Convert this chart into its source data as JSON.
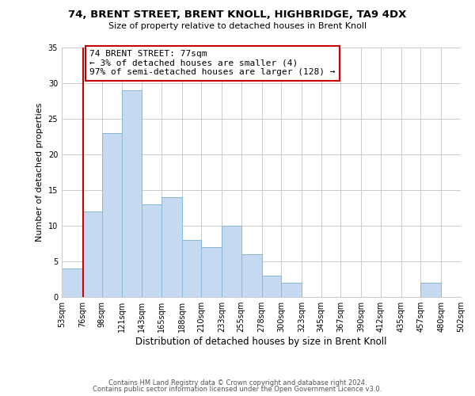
{
  "title": "74, BRENT STREET, BRENT KNOLL, HIGHBRIDGE, TA9 4DX",
  "subtitle": "Size of property relative to detached houses in Brent Knoll",
  "xlabel": "Distribution of detached houses by size in Brent Knoll",
  "ylabel": "Number of detached properties",
  "bin_edges": [
    53,
    76,
    98,
    121,
    143,
    165,
    188,
    210,
    233,
    255,
    278,
    300,
    323,
    345,
    367,
    390,
    412,
    435,
    457,
    480,
    502
  ],
  "bin_labels": [
    "53sqm",
    "76sqm",
    "98sqm",
    "121sqm",
    "143sqm",
    "165sqm",
    "188sqm",
    "210sqm",
    "233sqm",
    "255sqm",
    "278sqm",
    "300sqm",
    "323sqm",
    "345sqm",
    "367sqm",
    "390sqm",
    "412sqm",
    "435sqm",
    "457sqm",
    "480sqm",
    "502sqm"
  ],
  "counts": [
    4,
    12,
    23,
    29,
    13,
    14,
    8,
    7,
    10,
    6,
    3,
    2,
    0,
    0,
    0,
    0,
    0,
    0,
    2,
    0
  ],
  "bar_color": "#c5d9f1",
  "bar_edge_color": "#89b8d8",
  "vline_x": 77,
  "vline_color": "#cc0000",
  "annotation_text": "74 BRENT STREET: 77sqm\n← 3% of detached houses are smaller (4)\n97% of semi-detached houses are larger (128) →",
  "annotation_box_color": "#ffffff",
  "annotation_box_edge": "#cc0000",
  "ylim": [
    0,
    35
  ],
  "yticks": [
    0,
    5,
    10,
    15,
    20,
    25,
    30,
    35
  ],
  "footer_line1": "Contains HM Land Registry data © Crown copyright and database right 2024.",
  "footer_line2": "Contains public sector information licensed under the Open Government Licence v3.0.",
  "bg_color": "#ffffff",
  "grid_color": "#cccccc"
}
